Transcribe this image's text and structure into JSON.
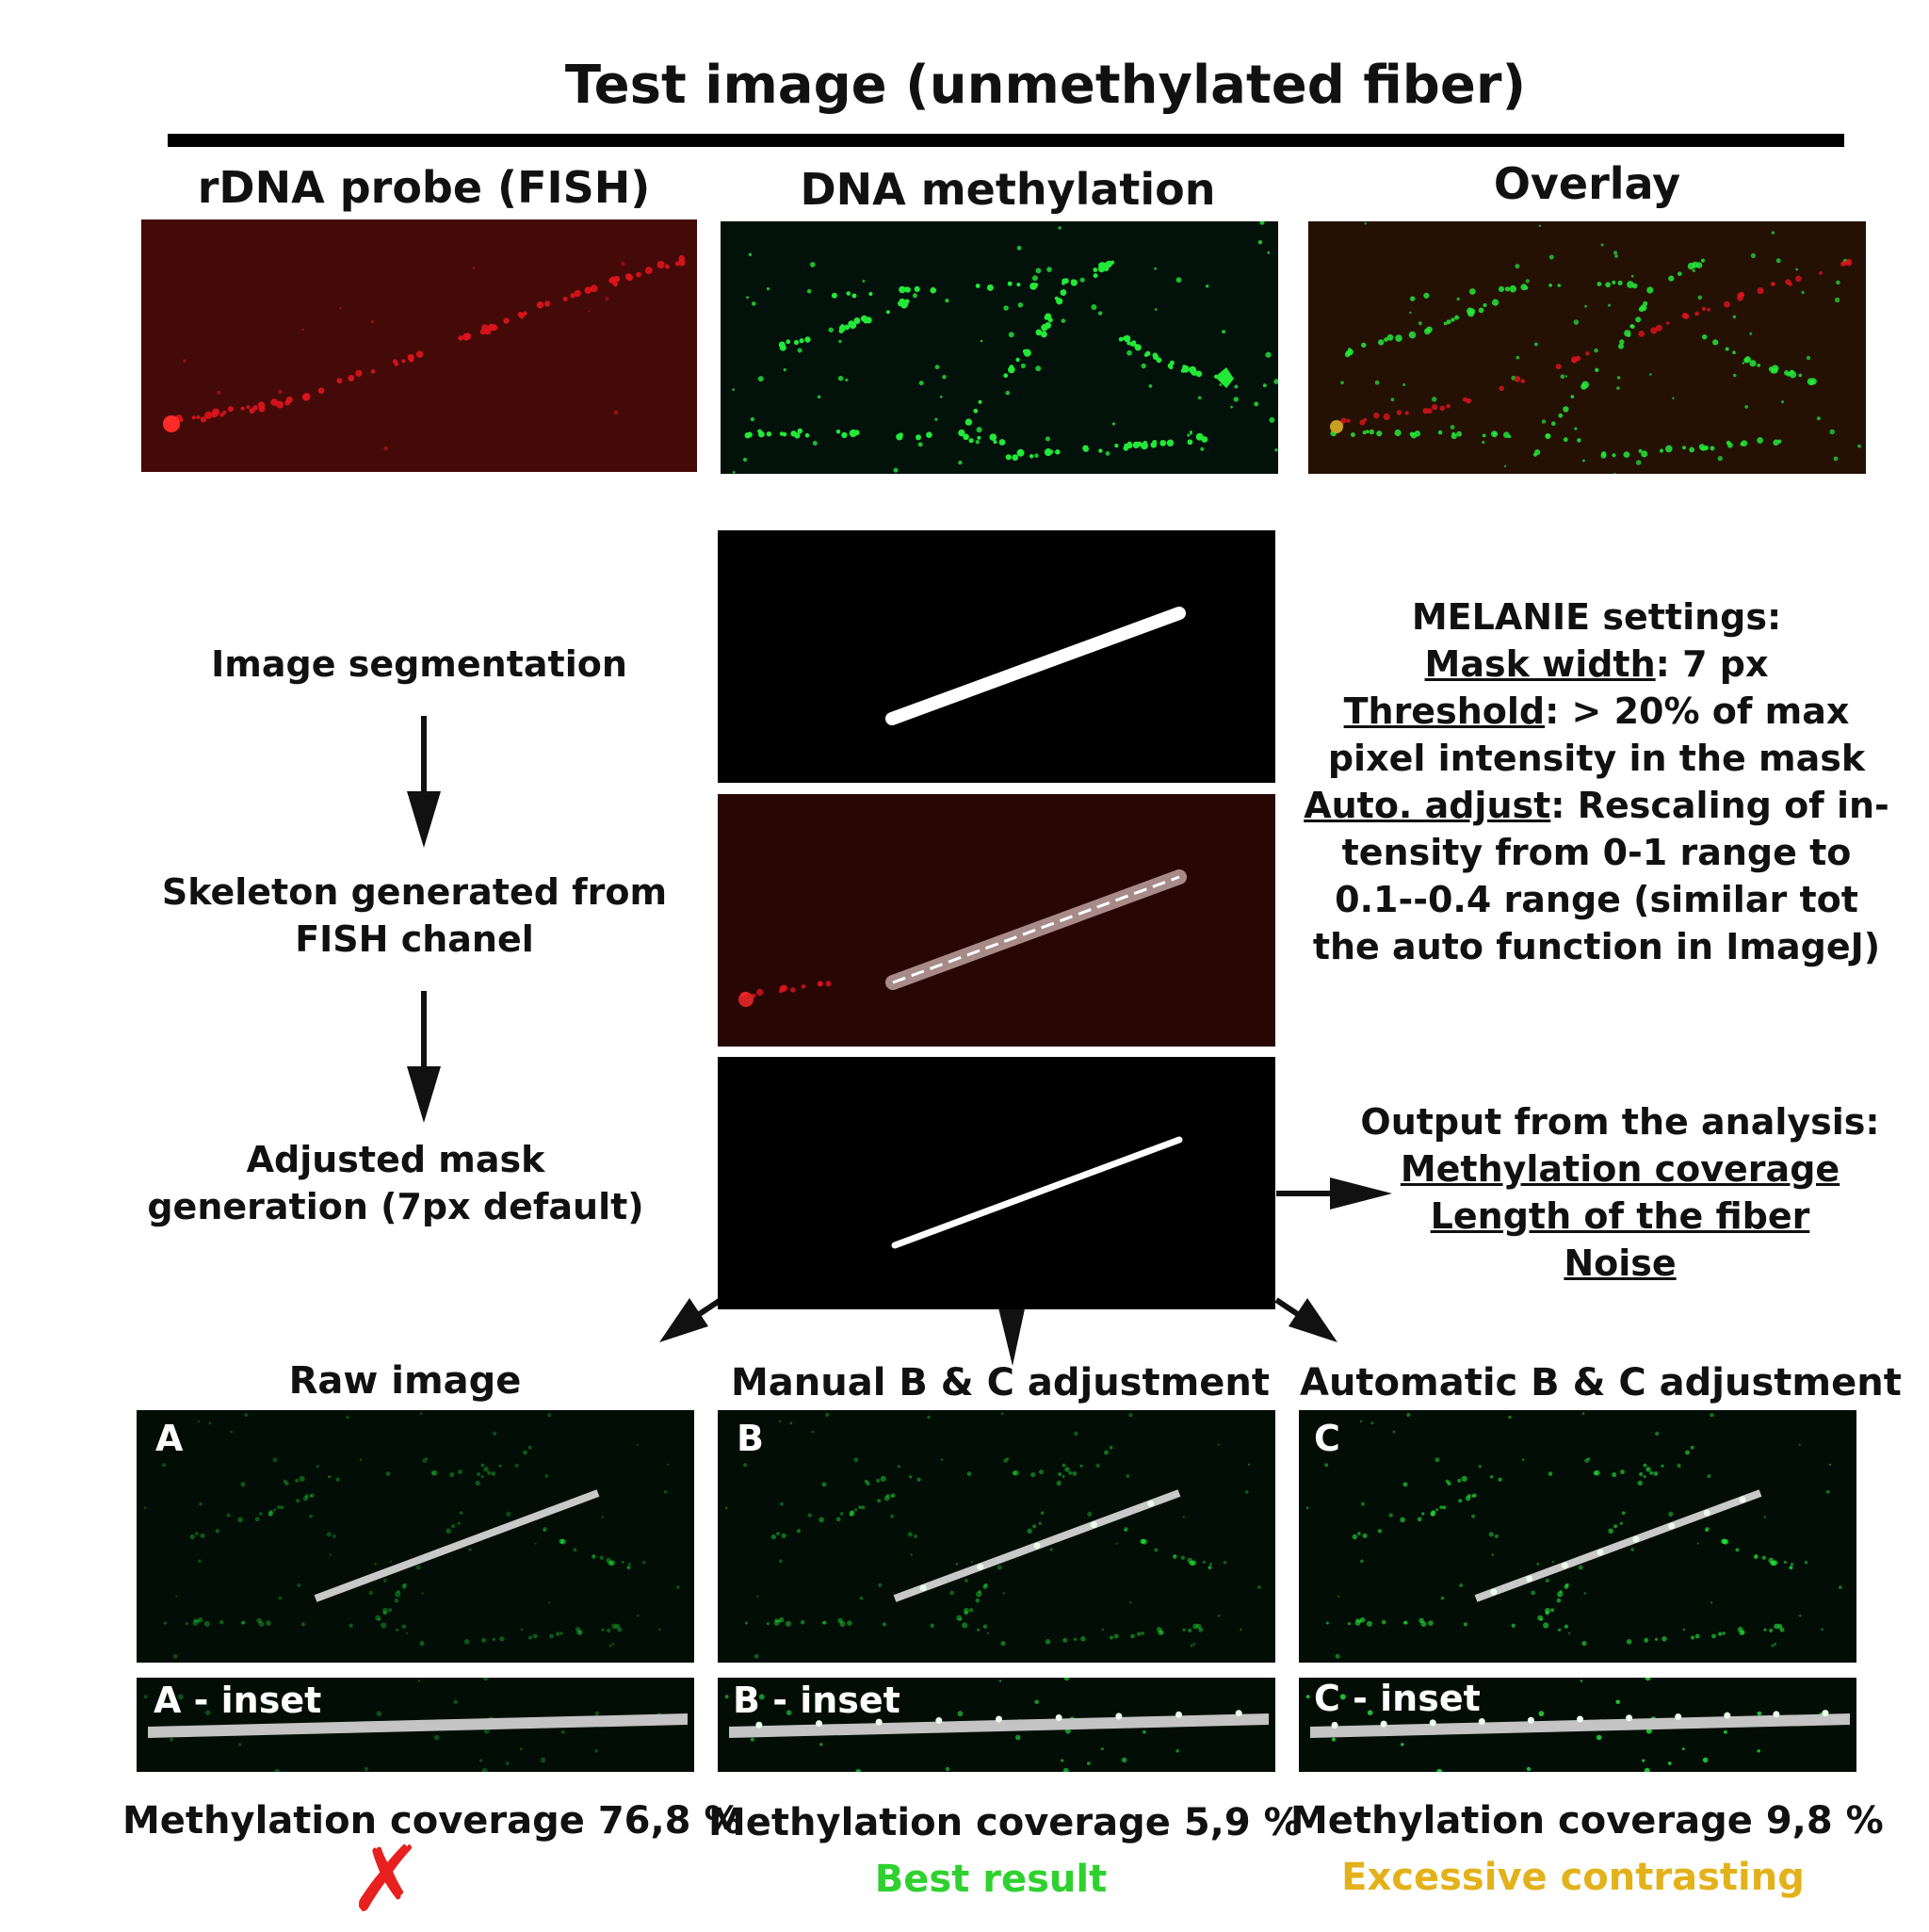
{
  "title": "Test image (unmethylated fiber)",
  "columns": {
    "fish": "rDNA probe (FISH)",
    "methylation": "DNA methylation",
    "overlay": "Overlay"
  },
  "steps": {
    "segmentation": "Image segmentation",
    "skeleton": "Skeleton generated from FISH chanel",
    "mask": "Adjusted mask generation (7px default)"
  },
  "settings": {
    "heading": "MELANIE settings:",
    "mask_width_label": "Mask width",
    "mask_width_value": ": 7 px",
    "threshold_label": "Threshold",
    "threshold_value": ":  > 20% of max pixel intensity in the mask",
    "auto_adjust_label": "Auto. adjust",
    "auto_adjust_value": ": Rescaling of in-tensity from 0-1 range to 0.1--0.4 range (similar tot the auto function in ImageJ)"
  },
  "output": {
    "heading": "Output from the analysis:",
    "items": [
      "Methylation coverage",
      "Length of the fiber",
      "Noise"
    ]
  },
  "results": [
    {
      "heading": "Raw image",
      "letter": "A",
      "inset": "A - inset",
      "coverage": "Methylation coverage 76,8 %",
      "verdict": "✗",
      "verdict_color": "#e8201f"
    },
    {
      "heading": "Manual B & C adjustment",
      "letter": "B",
      "inset": "B - inset",
      "coverage": "Methylation coverage 5,9 %",
      "verdict": "Best result",
      "verdict_color": "#2fd12f"
    },
    {
      "heading": "Automatic B & C adjustment",
      "letter": "C",
      "inset": "C - inset",
      "coverage": "Methylation coverage 9,8 %",
      "verdict": "Excessive contrasting",
      "verdict_color": "#e3b21b"
    }
  ],
  "colors": {
    "fish_red": "#e0141e",
    "methylation_green": "#23e838",
    "panel_black": "#000000"
  }
}
